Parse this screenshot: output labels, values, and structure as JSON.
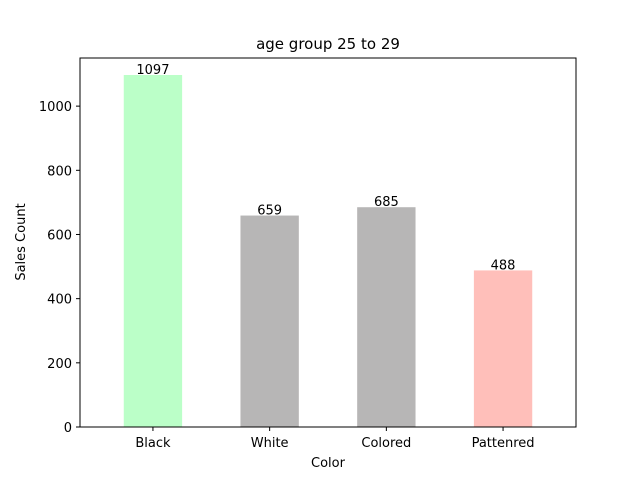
{
  "chart_data": {
    "type": "bar",
    "title": "age group 25 to 29",
    "xlabel": "Color",
    "ylabel": "Sales Count",
    "categories": [
      "Black",
      "White",
      "Colored",
      "Pattenred"
    ],
    "values": [
      1097,
      659,
      685,
      488
    ],
    "colors": [
      "#bbffc8",
      "#b7b6b6",
      "#b7b6b6",
      "#ffbfba"
    ],
    "data_labels": [
      "1097",
      "659",
      "685",
      "488"
    ],
    "ylim": [
      0,
      1150
    ],
    "yticks": [
      0,
      200,
      400,
      600,
      800,
      1000
    ],
    "grid": false,
    "legend": "none"
  }
}
